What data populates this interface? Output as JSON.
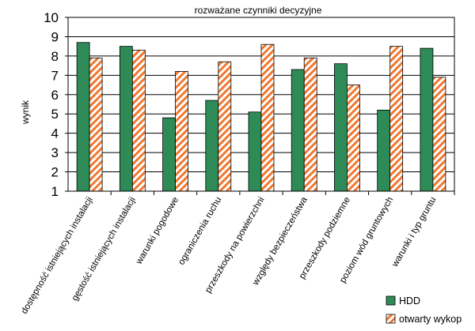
{
  "chart_data": {
    "type": "bar",
    "title": "rozważane czynniki decyzyjne",
    "xlabel": "",
    "ylabel": "wynik",
    "ylim": [
      1,
      10
    ],
    "yticks": [
      "1",
      "2",
      "3",
      "4",
      "5",
      "6",
      "7",
      "8",
      "9",
      "10"
    ],
    "grid": true,
    "legend_position": "bottom-right",
    "categories": [
      "dostępność istniejących instalacji",
      "gęstość istniejących instalacji",
      "warunki pogodowe",
      "ograniczenia ruchu",
      "przeszkody na powierzchni",
      "względy bezpieczeństwa",
      "przeszkody podziemne",
      "poziom wód gruntowych",
      "warunki i typ gruntu"
    ],
    "series": [
      {
        "name": "HDD",
        "values": [
          8.7,
          8.5,
          4.8,
          5.7,
          5.1,
          7.3,
          7.6,
          5.2,
          8.4
        ],
        "color": "#2e8b57"
      },
      {
        "name": "otwarty wykop",
        "values": [
          7.9,
          8.3,
          7.2,
          7.7,
          8.6,
          7.9,
          6.5,
          8.5,
          6.9
        ],
        "color": "#f07830"
      }
    ]
  }
}
